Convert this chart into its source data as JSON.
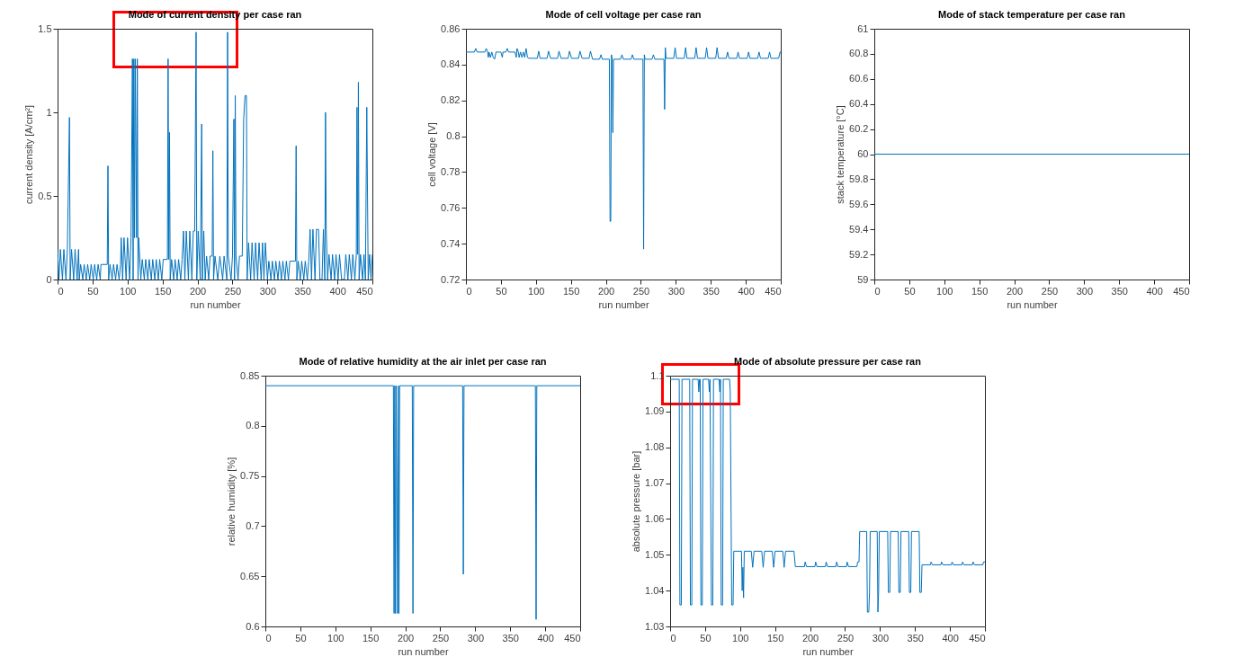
{
  "chart_data": [
    {
      "type": "line",
      "title": "Mode of current density per case ran",
      "xlabel": "run number",
      "ylabel": "current density [A/cm²]",
      "xlim": [
        0,
        450
      ],
      "ylim": [
        0,
        1.5
      ],
      "xticks": [
        0,
        50,
        100,
        150,
        200,
        250,
        300,
        350,
        400,
        450
      ],
      "yticks": [
        0,
        0.5,
        1,
        1.5
      ],
      "grid": false,
      "x": [
        0,
        2,
        4,
        7,
        9,
        12,
        14,
        17,
        18,
        20,
        23,
        25,
        28,
        30,
        31,
        33,
        36,
        38,
        41,
        43,
        46,
        48,
        51,
        53,
        56,
        58,
        61,
        62,
        71,
        72,
        73,
        75,
        78,
        80,
        83,
        85,
        88,
        90,
        91,
        93,
        95,
        98,
        100,
        103,
        105,
        107,
        108,
        109,
        110,
        111,
        113,
        114,
        115,
        116,
        119,
        121,
        124,
        126,
        129,
        131,
        134,
        136,
        139,
        141,
        144,
        146,
        149,
        151,
        157,
        158,
        159,
        160,
        161,
        163,
        166,
        168,
        171,
        173,
        176,
        178,
        180,
        182,
        184,
        187,
        189,
        192,
        194,
        196,
        198,
        199,
        201,
        204,
        206,
        207,
        209,
        211,
        213,
        216,
        218,
        221,
        222,
        223,
        225,
        229,
        232,
        236,
        238,
        242,
        243,
        244,
        248,
        250,
        252,
        253,
        254,
        255,
        258,
        260,
        264,
        266,
        268,
        270,
        271,
        273,
        276,
        278,
        281,
        283,
        286,
        288,
        291,
        293,
        295,
        297,
        300,
        302,
        305,
        307,
        310,
        312,
        315,
        317,
        320,
        322,
        325,
        327,
        330,
        332,
        340,
        341,
        342,
        344,
        347,
        349,
        352,
        354,
        357,
        359,
        361,
        363,
        365,
        368,
        370,
        373,
        375,
        378,
        380,
        382,
        383,
        384,
        386,
        388,
        391,
        393,
        396,
        398,
        401,
        403,
        406,
        410,
        412,
        415,
        417,
        420,
        422,
        425,
        427,
        428,
        429,
        430,
        431,
        433,
        436,
        438,
        440,
        442,
        444,
        446,
        448,
        450
      ],
      "series": [
        {
          "color": "#0072bd",
          "values": [
            0.18,
            0,
            0.18,
            0,
            0.18,
            0,
            0.18,
            0.97,
            0,
            0.18,
            0,
            0.18,
            0,
            0.18,
            0,
            0.09,
            0,
            0.09,
            0,
            0.09,
            0,
            0.09,
            0,
            0.09,
            0,
            0.09,
            0,
            0.09,
            0.09,
            0.68,
            0,
            0.09,
            0,
            0.09,
            0,
            0.09,
            0,
            0.09,
            0.25,
            0,
            0.25,
            0,
            0.25,
            0,
            0.25,
            1.32,
            0,
            1.32,
            0.25,
            1.32,
            0.25,
            1.32,
            0,
            0.25,
            0,
            0.12,
            0,
            0.12,
            0,
            0.12,
            0,
            0.12,
            0,
            0.12,
            0,
            0.12,
            0,
            0.12,
            0.12,
            1.32,
            0.12,
            0.88,
            0,
            0.12,
            0,
            0.12,
            0,
            0.12,
            0,
            0.12,
            0.29,
            0,
            0.29,
            0,
            0.29,
            0,
            0.29,
            0.29,
            1.48,
            0,
            0.29,
            0,
            0.93,
            0,
            0.29,
            0,
            0.14,
            0,
            0.14,
            0.14,
            0.77,
            0,
            0.14,
            0,
            0.14,
            0,
            0.14,
            0,
            1.48,
            0.14,
            0,
            0.14,
            0.96,
            0,
            1.1,
            0.14,
            0,
            0.14,
            0.14,
            0.96,
            1.1,
            1.1,
            0,
            0.22,
            0,
            0.22,
            0,
            0.22,
            0,
            0.22,
            0,
            0.22,
            0,
            0.22,
            0,
            0.11,
            0,
            0.11,
            0,
            0.11,
            0,
            0.11,
            0,
            0.11,
            0,
            0.11,
            0,
            0.11,
            0.11,
            0.8,
            0,
            0.11,
            0,
            0.11,
            0,
            0.11,
            0,
            0.11,
            0.3,
            0,
            0.3,
            0,
            0.3,
            0.3,
            0,
            0,
            0.3,
            0,
            1.0,
            0.3,
            0,
            0.15,
            0,
            0.15,
            0,
            0.15,
            0,
            0.15,
            0,
            0,
            0.15,
            0,
            0.15,
            0,
            0.15,
            0,
            0.15,
            1.03,
            0.15,
            1.18,
            0,
            0.15,
            0,
            0.15,
            0,
            1.03,
            0,
            0.15,
            0,
            0.15
          ]
        }
      ]
    },
    {
      "type": "line",
      "title": "Mode of cell voltage per case ran",
      "xlabel": "run number",
      "ylabel": "cell voltage [V]",
      "xlim": [
        0,
        450
      ],
      "ylim": [
        0.72,
        0.86
      ],
      "xticks": [
        0,
        50,
        100,
        150,
        200,
        250,
        300,
        350,
        400,
        450
      ],
      "yticks": [
        0.72,
        0.74,
        0.76,
        0.78,
        0.8,
        0.82,
        0.84,
        0.86
      ],
      "grid": false,
      "x": [
        0,
        12,
        14,
        16,
        27,
        29,
        31,
        32,
        33,
        35,
        37,
        39,
        41,
        43,
        48,
        50,
        52,
        53,
        57,
        59,
        61,
        70,
        72,
        73,
        75,
        76,
        78,
        80,
        82,
        84,
        86,
        88,
        90,
        102,
        104,
        106,
        116,
        118,
        121,
        131,
        133,
        136,
        146,
        148,
        151,
        161,
        163,
        166,
        176,
        178,
        181,
        191,
        193,
        195,
        205,
        206,
        207,
        208,
        209,
        210,
        211,
        221,
        223,
        225,
        236,
        238,
        240,
        253,
        254,
        255,
        256,
        266,
        268,
        270,
        283,
        284,
        285,
        286,
        297,
        299,
        301,
        312,
        314,
        316,
        327,
        329,
        331,
        342,
        344,
        346,
        357,
        359,
        361,
        372,
        374,
        376,
        387,
        389,
        391,
        402,
        404,
        406,
        417,
        419,
        421,
        432,
        434,
        436,
        447,
        449,
        450
      ],
      "series": [
        {
          "color": "#0072bd",
          "values": [
            0.847,
            0.847,
            0.849,
            0.847,
            0.847,
            0.849,
            0.847,
            0.844,
            0.847,
            0.844,
            0.847,
            0.844,
            0.843,
            0.847,
            0.847,
            0.847,
            0.844,
            0.847,
            0.847,
            0.849,
            0.847,
            0.847,
            0.844,
            0.849,
            0.847,
            0.844,
            0.847,
            0.844,
            0.847,
            0.844,
            0.849,
            0.844,
            0.8435,
            0.8435,
            0.8475,
            0.8435,
            0.8435,
            0.8475,
            0.8435,
            0.8435,
            0.8475,
            0.8435,
            0.8435,
            0.8475,
            0.8435,
            0.8435,
            0.8475,
            0.8435,
            0.8435,
            0.8475,
            0.843,
            0.843,
            0.8455,
            0.843,
            0.843,
            0.7525,
            0.7525,
            0.8455,
            0.843,
            0.802,
            0.843,
            0.843,
            0.8455,
            0.843,
            0.843,
            0.8455,
            0.843,
            0.843,
            0.737,
            0.8455,
            0.843,
            0.843,
            0.8455,
            0.843,
            0.843,
            0.815,
            0.8495,
            0.8435,
            0.8435,
            0.8495,
            0.8435,
            0.8435,
            0.8495,
            0.8435,
            0.8435,
            0.8495,
            0.8435,
            0.8435,
            0.8495,
            0.8435,
            0.8435,
            0.8495,
            0.8435,
            0.8435,
            0.847,
            0.8435,
            0.8435,
            0.847,
            0.8435,
            0.8435,
            0.847,
            0.8435,
            0.8435,
            0.847,
            0.8435,
            0.8435,
            0.847,
            0.8435,
            0.8435,
            0.847,
            0.847
          ]
        }
      ]
    },
    {
      "type": "line",
      "title": "Mode of stack temperature per case ran",
      "xlabel": "run number",
      "ylabel": "stack temperature [°C]",
      "xlim": [
        0,
        450
      ],
      "ylim": [
        59,
        61
      ],
      "xticks": [
        0,
        50,
        100,
        150,
        200,
        250,
        300,
        350,
        400,
        450
      ],
      "yticks": [
        59,
        59.2,
        59.4,
        59.6,
        59.8,
        60,
        60.2,
        60.4,
        60.6,
        60.8,
        61
      ],
      "grid": false,
      "x": [
        0,
        450
      ],
      "series": [
        {
          "color": "#0072bd",
          "values": [
            60,
            60
          ]
        }
      ]
    },
    {
      "type": "line",
      "title": "Mode of relative humidity at the air inlet per case ran",
      "xlabel": "run number",
      "ylabel": "relative humidity [%]",
      "xlim": [
        0,
        450
      ],
      "ylim": [
        0.6,
        0.85
      ],
      "xticks": [
        0,
        50,
        100,
        150,
        200,
        250,
        300,
        350,
        400,
        450
      ],
      "yticks": [
        0.6,
        0.65,
        0.7,
        0.75,
        0.8,
        0.85
      ],
      "grid": false,
      "x": [
        0,
        183,
        184,
        185,
        186,
        187,
        189,
        190,
        191,
        192,
        210,
        211,
        212,
        282,
        283,
        284,
        386,
        387,
        388,
        450
      ],
      "series": [
        {
          "color": "#0072bd",
          "values": [
            0.84,
            0.84,
            0.613,
            0.84,
            0.613,
            0.84,
            0.613,
            0.84,
            0.613,
            0.84,
            0.84,
            0.613,
            0.84,
            0.84,
            0.652,
            0.84,
            0.84,
            0.607,
            0.84,
            0.84
          ]
        }
      ]
    },
    {
      "type": "line",
      "title": "Mode of absolute pressure per case ran",
      "xlabel": "run number",
      "ylabel": "absolute pressure [bar]",
      "xlim": [
        0,
        450
      ],
      "ylim": [
        1.03,
        1.1
      ],
      "xticks": [
        0,
        50,
        100,
        150,
        200,
        250,
        300,
        350,
        400,
        450
      ],
      "yticks": [
        1.03,
        1.04,
        1.05,
        1.06,
        1.07,
        1.08,
        1.09,
        1.1
      ],
      "grid": false,
      "x": [
        0,
        13,
        14,
        16,
        17,
        28,
        29,
        31,
        32,
        40,
        41,
        42,
        43,
        44,
        46,
        47,
        55,
        56,
        57,
        59,
        61,
        62,
        70,
        71,
        72,
        73,
        75,
        76,
        85,
        86,
        88,
        90,
        91,
        102,
        103,
        104,
        105,
        106,
        116,
        118,
        120,
        131,
        133,
        135,
        146,
        148,
        150,
        161,
        163,
        165,
        177,
        179,
        192,
        193,
        195,
        207,
        208,
        210,
        222,
        223,
        225,
        237,
        238,
        240,
        252,
        253,
        255,
        267,
        268,
        270,
        271,
        281,
        282,
        284,
        285,
        286,
        296,
        297,
        298,
        299,
        311,
        312,
        314,
        315,
        326,
        327,
        329,
        330,
        341,
        342,
        344,
        345,
        356,
        357,
        359,
        360,
        372,
        373,
        375,
        387,
        388,
        390,
        402,
        403,
        405,
        417,
        418,
        420,
        432,
        433,
        435,
        447,
        448,
        450
      ],
      "series": [
        {
          "color": "#0072bd",
          "values": [
            1.099,
            1.099,
            1.036,
            1.036,
            1.099,
            1.099,
            1.036,
            1.036,
            1.099,
            1.099,
            1.0955,
            1.099,
            1.099,
            1.036,
            1.036,
            1.099,
            1.099,
            1.0955,
            1.099,
            1.036,
            1.036,
            1.099,
            1.099,
            1.0955,
            1.099,
            1.036,
            1.036,
            1.099,
            1.099,
            1.0955,
            1.036,
            1.036,
            1.051,
            1.051,
            1.04,
            1.0465,
            1.038,
            1.051,
            1.051,
            1.0465,
            1.051,
            1.051,
            1.0465,
            1.051,
            1.051,
            1.0465,
            1.051,
            1.051,
            1.0465,
            1.051,
            1.051,
            1.0467,
            1.0467,
            1.048,
            1.0467,
            1.0467,
            1.048,
            1.0467,
            1.0467,
            1.048,
            1.0467,
            1.0467,
            1.048,
            1.0467,
            1.0467,
            1.048,
            1.0467,
            1.0467,
            1.048,
            1.048,
            1.0565,
            1.0565,
            1.034,
            1.034,
            1.0395,
            1.0565,
            1.0565,
            1.034,
            1.0395,
            1.0565,
            1.0565,
            1.0395,
            1.0395,
            1.0565,
            1.0565,
            1.0395,
            1.0395,
            1.0565,
            1.0565,
            1.0395,
            1.0395,
            1.0565,
            1.0565,
            1.0395,
            1.0395,
            1.0472,
            1.0472,
            1.048,
            1.0472,
            1.0472,
            1.048,
            1.0472,
            1.0472,
            1.048,
            1.0472,
            1.0472,
            1.048,
            1.0472,
            1.0472,
            1.048,
            1.0472,
            1.0472,
            1.048,
            1.048
          ]
        }
      ]
    }
  ]
}
